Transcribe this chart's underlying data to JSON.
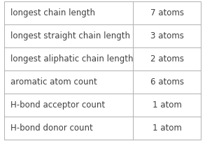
{
  "rows": [
    [
      "longest chain length",
      "7 atoms"
    ],
    [
      "longest straight chain length",
      "3 atoms"
    ],
    [
      "longest aliphatic chain length",
      "2 atoms"
    ],
    [
      "aromatic atom count",
      "6 atoms"
    ],
    [
      "H-bond acceptor count",
      "1 atom"
    ],
    [
      "H-bond donor count",
      "1 atom"
    ]
  ],
  "col_split": 0.655,
  "bg_color": "#ffffff",
  "border_color": "#b0b0b0",
  "text_color_left": "#404040",
  "text_color_right": "#404040",
  "font_size": 8.5
}
